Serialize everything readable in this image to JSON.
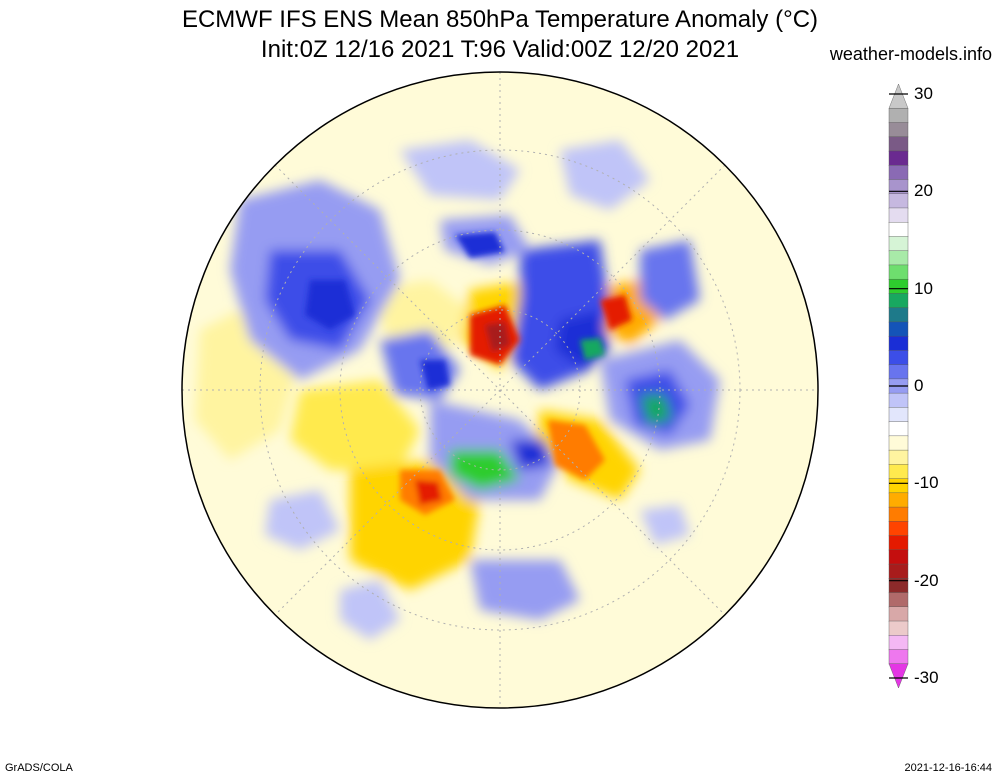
{
  "title": {
    "line1": "ECMWF IFS ENS Mean 850hPa Temperature Anomaly (°C)",
    "line2": "Init:0Z 12/16 2021  T:96 Valid:00Z 12/20 2021"
  },
  "site": "weather-models.info",
  "footer": {
    "left": "GrADS/COLA",
    "right": "2021-12-16-16:44"
  },
  "colorbar": {
    "ticks": [
      "30",
      "20",
      "10",
      "0",
      "-10",
      "-20",
      "-30"
    ],
    "colors": [
      "#c8c8c8",
      "#b0b0b0",
      "#988c98",
      "#7a5a86",
      "#6a2a90",
      "#8a6ab4",
      "#a894cc",
      "#c6b8e0",
      "#e4dcf0",
      "#ffffff",
      "#d6f4d6",
      "#a8eaa8",
      "#6ede6e",
      "#2ecc2e",
      "#18a860",
      "#1e7a8a",
      "#1454b8",
      "#1a2ed6",
      "#3c4ee8",
      "#6874ee",
      "#969cf2",
      "#c0c4f8",
      "#e2e6fc",
      "#ffffff",
      "#fffbd8",
      "#fff4a0",
      "#ffea4e",
      "#ffd400",
      "#ffac00",
      "#ff7c00",
      "#ff4400",
      "#e41a00",
      "#c40e0e",
      "#a81c1c",
      "#8c2a2a",
      "#b06a6a",
      "#d8a8a8",
      "#eccaca",
      "#f4b8f4",
      "#ee78ee",
      "#e436e4"
    ]
  }
}
